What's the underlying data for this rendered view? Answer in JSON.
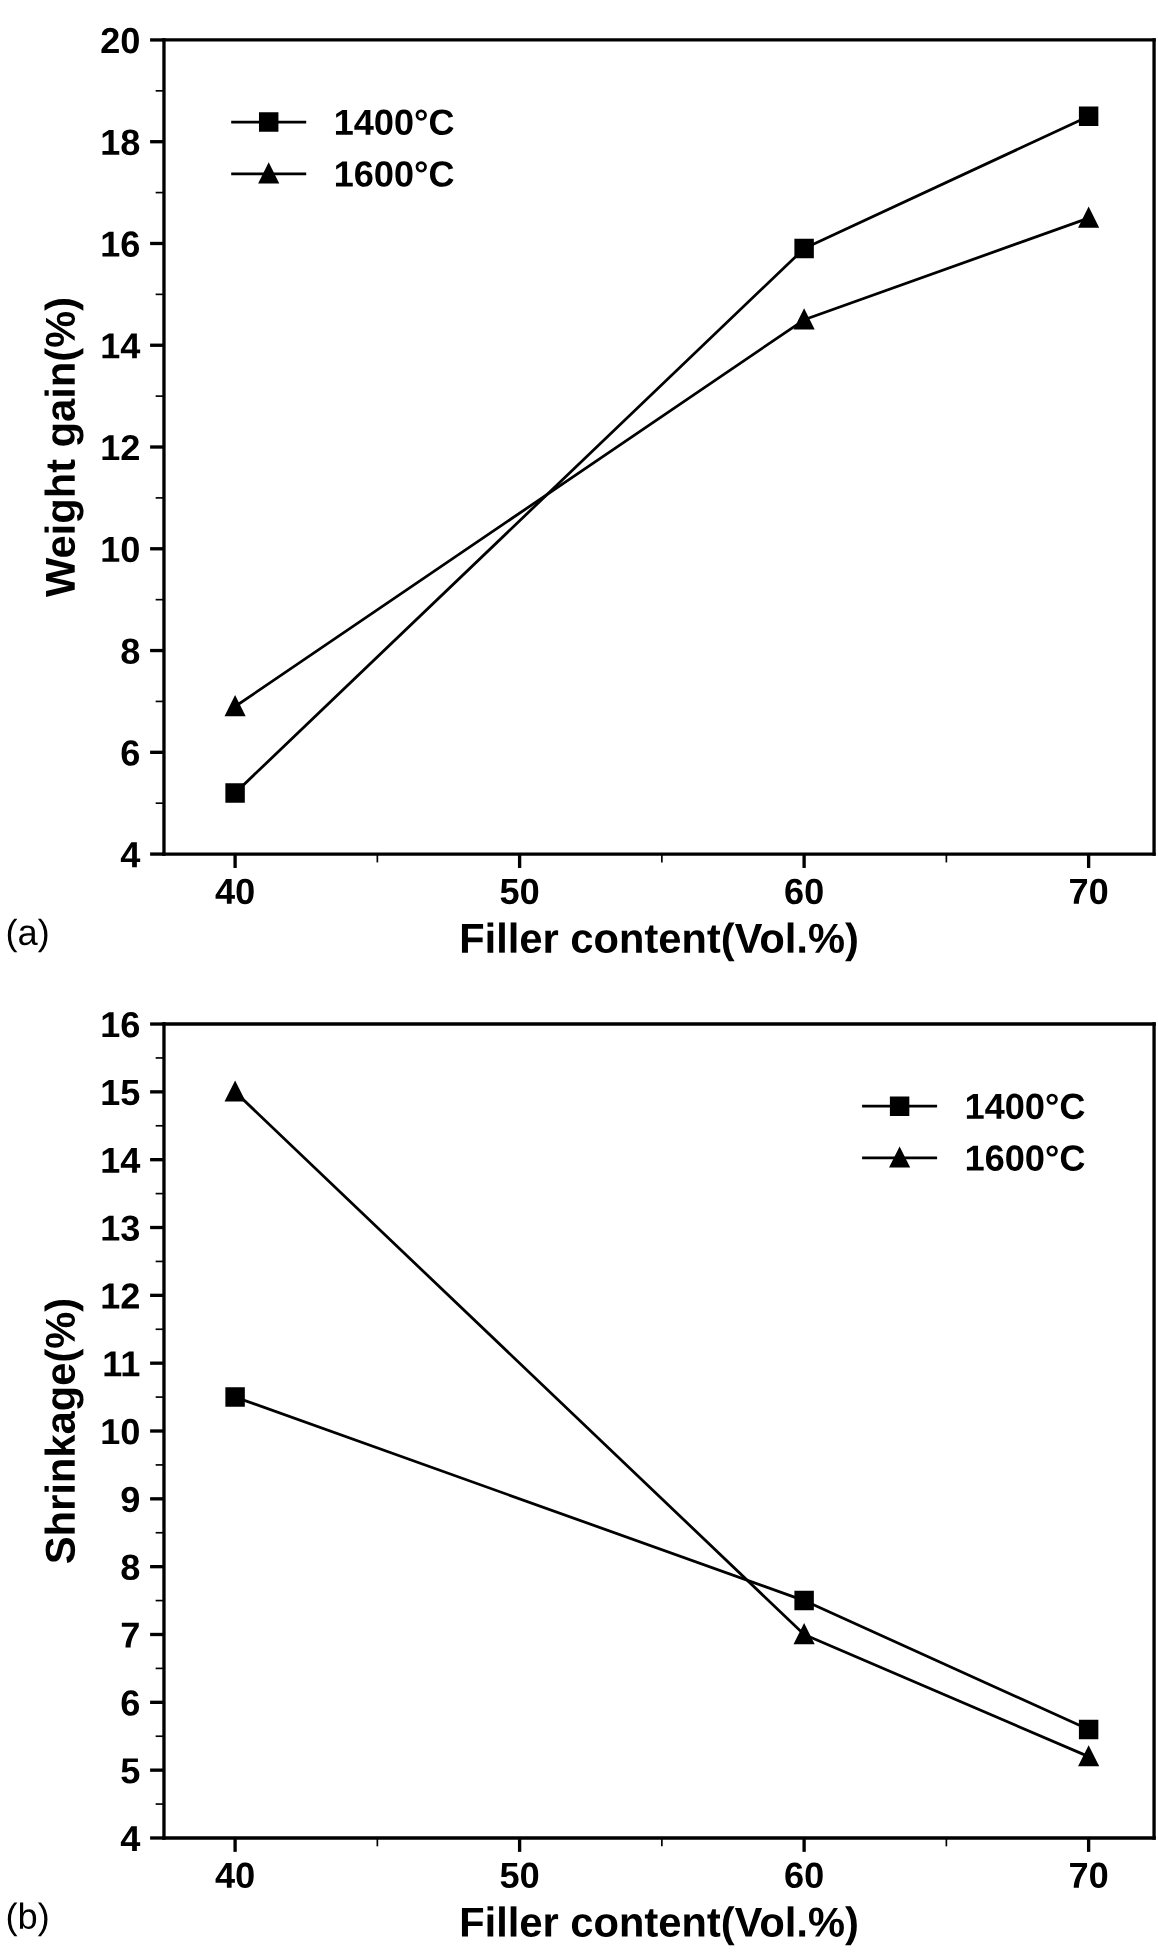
{
  "chart_data": [
    {
      "type": "line",
      "x": [
        40,
        60,
        70
      ],
      "xlabel": "Filler content(Vol.%)",
      "ylabel": "Weight gain(%)",
      "xlim": [
        37.5,
        72.3
      ],
      "xticks": [
        40,
        50,
        60,
        70
      ],
      "ylim": [
        4,
        20
      ],
      "yticks": [
        4,
        6,
        8,
        10,
        12,
        14,
        16,
        18,
        20
      ],
      "grid": false,
      "legend": "top left",
      "line_style": "solid",
      "annotations": [
        "(a)"
      ],
      "series": [
        {
          "name": "1400°C",
          "color": "#000000",
          "marker": "square",
          "values": [
            5.2,
            15.9,
            18.5
          ]
        },
        {
          "name": "1600°C",
          "color": "#000000",
          "marker": "triangle",
          "values": [
            6.9,
            14.5,
            16.5
          ]
        }
      ]
    },
    {
      "type": "line",
      "x": [
        40,
        60,
        70
      ],
      "xlabel": "Filler content(Vol.%)",
      "ylabel": "Shrinkage(%)",
      "xlim": [
        37.5,
        72.3
      ],
      "xticks": [
        40,
        50,
        60,
        70
      ],
      "ylim": [
        4,
        16
      ],
      "yticks": [
        4,
        5,
        6,
        7,
        8,
        9,
        10,
        11,
        12,
        13,
        14,
        15,
        16
      ],
      "grid": false,
      "legend": "top right",
      "line_style": "solid",
      "annotations": [
        "(b)"
      ],
      "series": [
        {
          "name": "1400°C",
          "color": "#000000",
          "marker": "square",
          "values": [
            10.5,
            7.5,
            5.6
          ]
        },
        {
          "name": "1600°C",
          "color": "#000000",
          "marker": "triangle",
          "values": [
            15.0,
            7.0,
            5.2
          ]
        }
      ]
    }
  ]
}
